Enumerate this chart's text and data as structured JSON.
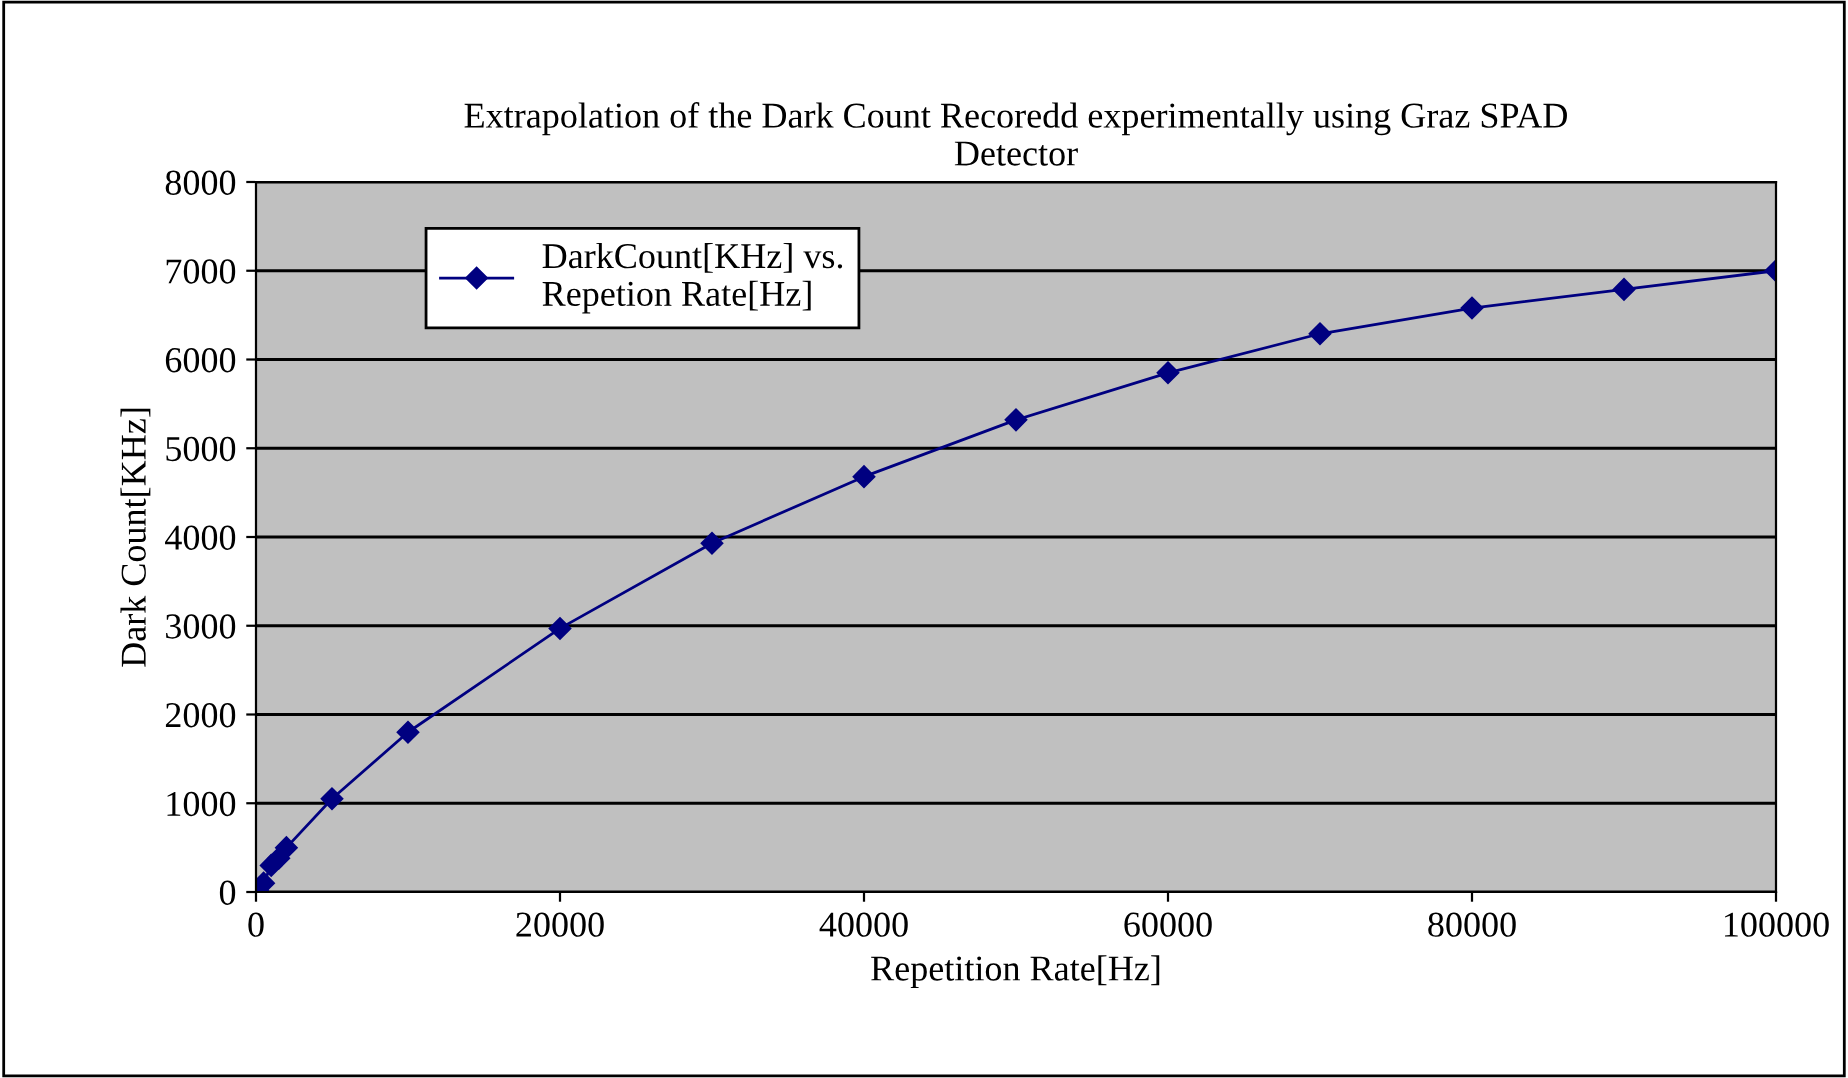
{
  "chart_data": {
    "type": "line",
    "title": "Extrapolation of the Dark Count Recoredd experimentally using Graz SPAD\nDetector",
    "xlabel": "Repetition Rate[Hz]",
    "ylabel": "Dark Count[KHz]",
    "x": [
      100,
      500,
      1000,
      1500,
      2000,
      5000,
      10000,
      20000,
      30000,
      40000,
      50000,
      60000,
      70000,
      80000,
      90000,
      100000
    ],
    "series": [
      {
        "name": "DarkCount[KHz] vs.\nRepetion Rate[Hz]",
        "color": "#000080",
        "values": [
          20,
          100,
          300,
          380,
          500,
          1050,
          1800,
          2970,
          3930,
          4680,
          5320,
          5850,
          6290,
          6580,
          6790,
          7000
        ]
      }
    ],
    "xlim": [
      0,
      100000
    ],
    "xticks": [
      0,
      20000,
      40000,
      60000,
      80000,
      100000
    ],
    "ylim": [
      0,
      8000
    ],
    "yticks": [
      0,
      1000,
      2000,
      3000,
      4000,
      5000,
      6000,
      7000,
      8000
    ],
    "grid": "y",
    "legend": "top left",
    "marker": "diamond",
    "line_style": "solid"
  }
}
